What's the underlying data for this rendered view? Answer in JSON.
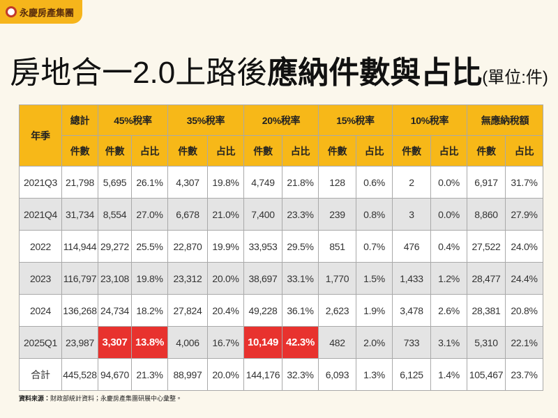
{
  "header": {
    "logo": "永慶房產集團",
    "title": "房地合一2.0上路後",
    "title_bold": "應納件數與占比",
    "unit": "(單位:件)"
  },
  "table": {
    "groups": [
      "年季",
      "總計",
      "45%稅率",
      "35%稅率",
      "20%稅率",
      "15%稅率",
      "10%稅率",
      "無應納稅額"
    ],
    "subheaders": [
      "件數",
      "件數",
      "占比",
      "件數",
      "占比",
      "件數",
      "占比",
      "件數",
      "占比",
      "件數",
      "占比",
      "件數",
      "占比"
    ],
    "rows": [
      [
        "2021Q3",
        "21,798",
        "5,695",
        "26.1%",
        "4,307",
        "19.8%",
        "4,749",
        "21.8%",
        "128",
        "0.6%",
        "2",
        "0.0%",
        "6,917",
        "31.7%"
      ],
      [
        "2021Q4",
        "31,734",
        "8,554",
        "27.0%",
        "6,678",
        "21.0%",
        "7,400",
        "23.3%",
        "239",
        "0.8%",
        "3",
        "0.0%",
        "8,860",
        "27.9%"
      ],
      [
        "2022",
        "114,944",
        "29,272",
        "25.5%",
        "22,870",
        "19.9%",
        "33,953",
        "29.5%",
        "851",
        "0.7%",
        "476",
        "0.4%",
        "27,522",
        "24.0%"
      ],
      [
        "2023",
        "116,797",
        "23,108",
        "19.8%",
        "23,312",
        "20.0%",
        "38,697",
        "33.1%",
        "1,770",
        "1.5%",
        "1,433",
        "1.2%",
        "28,477",
        "24.4%"
      ],
      [
        "2024",
        "136,268",
        "24,734",
        "18.2%",
        "27,824",
        "20.4%",
        "49,228",
        "36.1%",
        "2,623",
        "1.9%",
        "3,478",
        "2.6%",
        "28,381",
        "20.8%"
      ],
      [
        "2025Q1",
        "23,987",
        "3,307",
        "13.8%",
        "4,006",
        "16.7%",
        "10,149",
        "42.3%",
        "482",
        "2.0%",
        "733",
        "3.1%",
        "5,310",
        "22.1%"
      ],
      [
        "合計",
        "445,528",
        "94,670",
        "21.3%",
        "88,997",
        "20.0%",
        "144,176",
        "32.3%",
        "6,093",
        "1.3%",
        "6,125",
        "1.4%",
        "105,467",
        "23.7%"
      ]
    ]
  },
  "footer": {
    "source_label": "資料來源：",
    "source": "財政部統計資料；永慶房產集團研展中心彙整。"
  }
}
